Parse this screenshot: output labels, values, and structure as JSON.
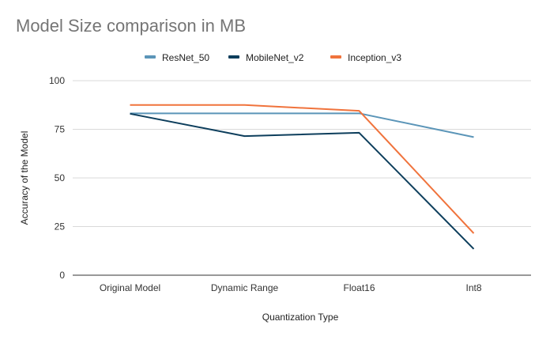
{
  "chart_data": {
    "type": "line",
    "title": "Model Size comparison in MB",
    "xlabel": "Quantization Type",
    "ylabel": "Accuracy of the Model",
    "categories": [
      "Original Model",
      "Dynamic Range",
      "Float16",
      "Int8"
    ],
    "ylim": [
      0,
      100
    ],
    "yticks": [
      0,
      25,
      50,
      75,
      100
    ],
    "grid": true,
    "legend_position": "top",
    "series": [
      {
        "name": "ResNet_50",
        "color": "#5b95b8",
        "values": [
          83.2,
          83.2,
          83.2,
          71.0
        ]
      },
      {
        "name": "MobileNet_v2",
        "color": "#0d3e5c",
        "values": [
          83.0,
          71.5,
          73.2,
          13.5
        ]
      },
      {
        "name": "Inception_v3",
        "color": "#f0733c",
        "values": [
          87.5,
          87.5,
          84.5,
          21.5
        ]
      }
    ]
  }
}
